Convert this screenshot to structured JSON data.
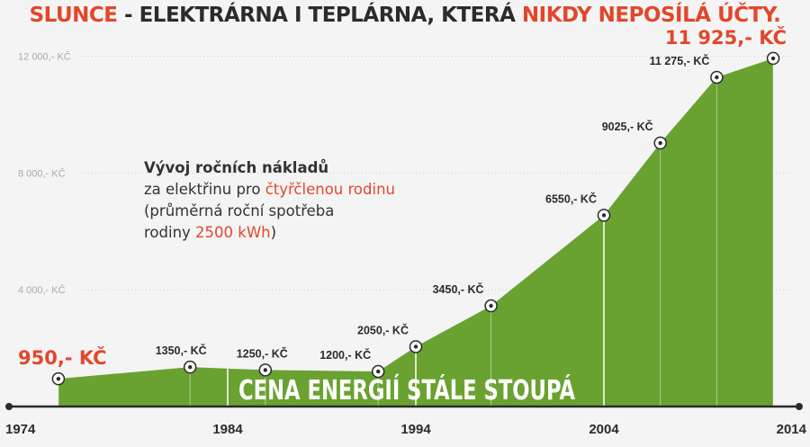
{
  "headline": {
    "part1": "SLUNCE",
    "part2": " - ELEKTRÁRNA I TEPLÁRNA, KTERÁ ",
    "part3": "NIKDY NEPOSÍLÁ ÚČTY."
  },
  "description": {
    "line1": "Vývoj ročních nákladů",
    "line2_a": "za elektřinu pro ",
    "line2_b": "čtyřčlenou rodinu",
    "line3": "(průměrná roční spotřeba",
    "line4_a": "rodiny ",
    "line4_b": "2500 kWh",
    "line4_c": ")"
  },
  "banner": "CENA ENERGIÍ STÁLE STOUPÁ",
  "colors": {
    "area": "#6aa231",
    "accent": "#e2472b",
    "dark": "#2b2b2b",
    "grid": "#c9c9c9",
    "axis_label": "#aaaaaa"
  },
  "chart_data": {
    "type": "area",
    "title": "",
    "xlabel": "",
    "ylabel": "",
    "xlim": [
      1974,
      2014
    ],
    "ylim": [
      0,
      13000
    ],
    "x_ticks": [
      "1974",
      "1984",
      "1994",
      "2004",
      "2014"
    ],
    "y_ticks": [
      {
        "value": 4000,
        "label": "4 000,- KČ"
      },
      {
        "value": 8000,
        "label": "8 000,- KČ"
      },
      {
        "value": 12000,
        "label": "12 000,- KČ"
      }
    ],
    "grid": true,
    "points": [
      {
        "x": 1975,
        "y": 950,
        "label": "950,- KČ",
        "emphasis": true
      },
      {
        "x": 1982,
        "y": 1350,
        "label": "1350,- KČ"
      },
      {
        "x": 1986,
        "y": 1250,
        "label": "1250,- KČ"
      },
      {
        "x": 1992,
        "y": 1200,
        "label": "1200,- KČ"
      },
      {
        "x": 1994,
        "y": 2050,
        "label": "2050,- KČ"
      },
      {
        "x": 1998,
        "y": 3450,
        "label": "3450,- KČ"
      },
      {
        "x": 2004,
        "y": 6550,
        "label": "6550,- KČ"
      },
      {
        "x": 2007,
        "y": 9025,
        "label": "9025,- KČ"
      },
      {
        "x": 2010,
        "y": 11275,
        "label": "11 275,- KČ"
      },
      {
        "x": 2013,
        "y": 11925,
        "label": "11 925,- KČ",
        "emphasis": true
      }
    ]
  }
}
